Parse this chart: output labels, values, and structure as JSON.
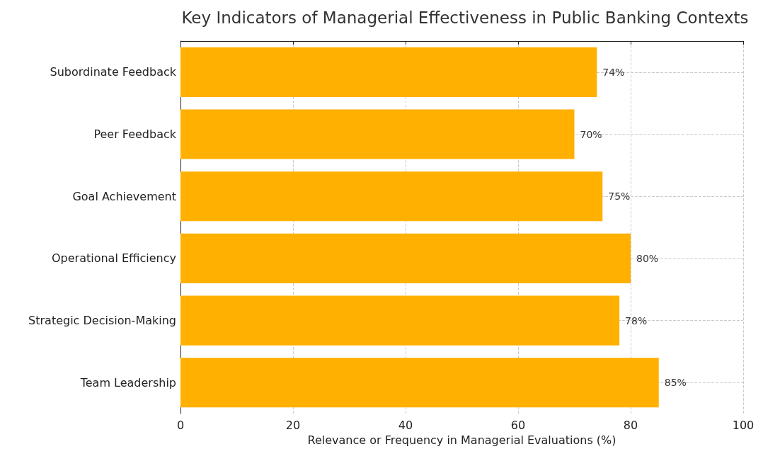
{
  "chart_data": {
    "type": "bar",
    "orientation": "horizontal",
    "title": "Key Indicators of Managerial Effectiveness in Public Banking Contexts",
    "xlabel": "Relevance or Frequency in Managerial Evaluations (%)",
    "categories": [
      "Subordinate Feedback",
      "Peer Feedback",
      "Goal Achievement",
      "Operational Efficiency",
      "Strategic Decision-Making",
      "Team Leadership"
    ],
    "values": [
      74,
      70,
      75,
      80,
      78,
      85
    ],
    "value_labels": [
      "74%",
      "70%",
      "75%",
      "80%",
      "78%",
      "85%"
    ],
    "color": "#ffb000",
    "xlim": [
      0,
      100
    ],
    "xticks": [
      0,
      20,
      40,
      60,
      80,
      100
    ],
    "grid": true
  }
}
